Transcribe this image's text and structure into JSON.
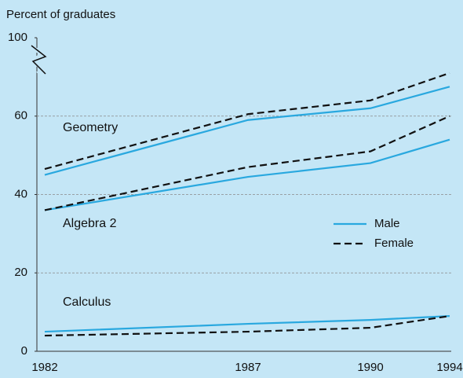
{
  "chart_data": {
    "type": "line",
    "ylabel": "Percent of graduates",
    "categories": [
      "1982",
      "1987",
      "1990",
      "1994"
    ],
    "ylim": [
      0,
      100
    ],
    "y_break": [
      80,
      100
    ],
    "yticks": [
      0,
      20,
      40,
      60,
      100
    ],
    "grid": true,
    "legend": [
      {
        "name": "Male",
        "color": "#29a8df",
        "dashed": false
      },
      {
        "name": "Female",
        "color": "#111111",
        "dashed": true
      }
    ],
    "subjects": [
      {
        "name": "Geometry",
        "male": [
          45,
          59,
          62,
          67.5
        ],
        "female": [
          46.5,
          60.5,
          64,
          71
        ]
      },
      {
        "name": "Algebra 2",
        "male": [
          36,
          44.5,
          48,
          54
        ],
        "female": [
          36,
          47,
          51,
          60
        ]
      },
      {
        "name": "Calculus",
        "male": [
          5,
          7,
          8,
          9
        ],
        "female": [
          4,
          5,
          6,
          9
        ]
      }
    ]
  }
}
